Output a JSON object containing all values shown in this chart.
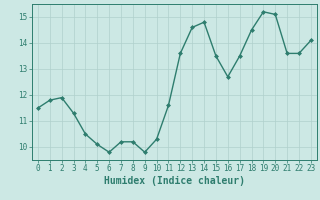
{
  "x": [
    0,
    1,
    2,
    3,
    4,
    5,
    6,
    7,
    8,
    9,
    10,
    11,
    12,
    13,
    14,
    15,
    16,
    17,
    18,
    19,
    20,
    21,
    22,
    23
  ],
  "y": [
    11.5,
    11.8,
    11.9,
    11.3,
    10.5,
    10.1,
    9.8,
    10.2,
    10.2,
    9.8,
    10.3,
    11.6,
    13.6,
    14.6,
    14.8,
    13.5,
    12.7,
    13.5,
    14.5,
    15.2,
    15.1,
    13.6,
    13.6,
    14.1
  ],
  "line_color": "#2e7d6e",
  "marker": "D",
  "marker_size": 2.0,
  "background_color": "#cce8e4",
  "grid_color": "#b0d0cc",
  "axis_color": "#2e7d6e",
  "xlabel": "Humidex (Indice chaleur)",
  "xlabel_fontsize": 7,
  "ylim": [
    9.5,
    15.5
  ],
  "xlim": [
    -0.5,
    23.5
  ],
  "yticks": [
    10,
    11,
    12,
    13,
    14,
    15
  ],
  "xticks": [
    0,
    1,
    2,
    3,
    4,
    5,
    6,
    7,
    8,
    9,
    10,
    11,
    12,
    13,
    14,
    15,
    16,
    17,
    18,
    19,
    20,
    21,
    22,
    23
  ],
  "tick_fontsize": 5.5,
  "linewidth": 1.0
}
